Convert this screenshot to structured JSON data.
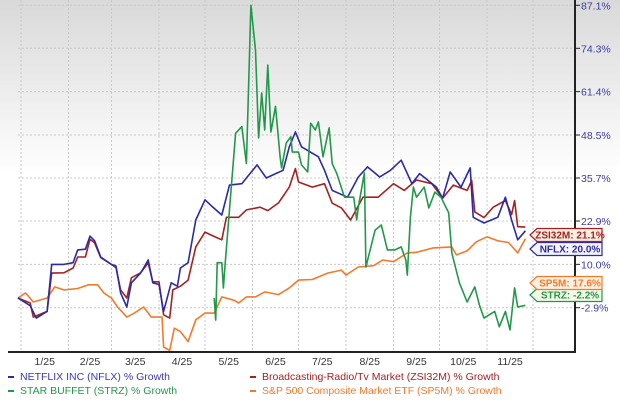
{
  "chart_data": {
    "type": "line",
    "title": "",
    "xlabel": "",
    "ylabel": "",
    "x_tick_labels": [
      "1/25",
      "2/25",
      "3/25",
      "4/25",
      "5/25",
      "6/25",
      "7/25",
      "8/25",
      "9/25",
      "10/25",
      "11/25"
    ],
    "y_tick_labels": [
      "87.1%",
      "74.3%",
      "61.4%",
      "48.5%",
      "35.7%",
      "22.9%",
      "10.0%",
      "-2.9%"
    ],
    "y_ticks": [
      87.1,
      74.3,
      61.4,
      48.5,
      35.7,
      22.9,
      10.0,
      -2.9
    ],
    "ylim": [
      -17,
      87.1
    ],
    "xlim": [
      "2024-12-30",
      "2025-12-31"
    ],
    "y_axis_side": "right",
    "grid": true,
    "legend_position": "bottom",
    "series": [
      {
        "name": "NETFLIX INC (NFLX) % Growth",
        "ticker": "NFLX",
        "color": "#2b2ba6",
        "end_label": "NFLX: 20.0%",
        "points": [
          [
            "2024-12-30",
            0
          ],
          [
            "2025-01-07",
            -2.3
          ],
          [
            "2025-01-11",
            -6
          ],
          [
            "2025-01-18",
            -4
          ],
          [
            "2025-01-21",
            10
          ],
          [
            "2025-01-29",
            10
          ],
          [
            "2025-02-04",
            10.5
          ],
          [
            "2025-02-07",
            14.3
          ],
          [
            "2025-02-12",
            14.5
          ],
          [
            "2025-02-15",
            18.4
          ],
          [
            "2025-02-18",
            17
          ],
          [
            "2025-02-22",
            12.2
          ],
          [
            "2025-03-01",
            10
          ],
          [
            "2025-03-04",
            9.5
          ],
          [
            "2025-03-07",
            1.5
          ],
          [
            "2025-03-11",
            -2.7
          ],
          [
            "2025-03-14",
            4.5
          ],
          [
            "2025-03-20",
            7.4
          ],
          [
            "2025-03-25",
            11.3
          ],
          [
            "2025-03-28",
            4.5
          ],
          [
            "2025-04-01",
            4
          ],
          [
            "2025-04-04",
            -4
          ],
          [
            "2025-04-09",
            4.5
          ],
          [
            "2025-04-13",
            3.5
          ],
          [
            "2025-04-15",
            8.9
          ],
          [
            "2025-04-20",
            10.5
          ],
          [
            "2025-04-25",
            23.2
          ],
          [
            "2025-05-01",
            29.2
          ],
          [
            "2025-05-05",
            27.5
          ],
          [
            "2025-05-12",
            24.7
          ],
          [
            "2025-05-17",
            33.6
          ],
          [
            "2025-05-25",
            34
          ],
          [
            "2025-05-28",
            35.7
          ],
          [
            "2025-06-04",
            39.6
          ],
          [
            "2025-06-10",
            35.7
          ],
          [
            "2025-06-17",
            37.2
          ],
          [
            "2025-06-21",
            38
          ],
          [
            "2025-06-25",
            45
          ],
          [
            "2025-06-29",
            49.4
          ],
          [
            "2025-07-03",
            45
          ],
          [
            "2025-07-14",
            42
          ],
          [
            "2025-07-18",
            38
          ],
          [
            "2025-07-23",
            32
          ],
          [
            "2025-08-02",
            30
          ],
          [
            "2025-08-09",
            36
          ],
          [
            "2025-08-15",
            39
          ],
          [
            "2025-08-23",
            36
          ],
          [
            "2025-08-30",
            38
          ],
          [
            "2025-09-06",
            41
          ],
          [
            "2025-09-13",
            34
          ],
          [
            "2025-09-18",
            37
          ],
          [
            "2025-09-29",
            33
          ],
          [
            "2025-10-03",
            29.7
          ],
          [
            "2025-10-08",
            37.5
          ],
          [
            "2025-10-15",
            33
          ],
          [
            "2025-10-21",
            38.7
          ],
          [
            "2025-10-23",
            24
          ],
          [
            "2025-10-30",
            22.3
          ],
          [
            "2025-11-08",
            24
          ],
          [
            "2025-11-13",
            30
          ],
          [
            "2025-11-17",
            23.2
          ],
          [
            "2025-11-21",
            17.3
          ],
          [
            "2025-11-26",
            20
          ]
        ]
      },
      {
        "name": "Broadcasting-Radio/Tv Market (ZSI32M) % Growth",
        "ticker": "ZSI32M",
        "color": "#a32222",
        "end_label": "ZSI32M: 21.1%",
        "points": [
          [
            "2024-12-30",
            0
          ],
          [
            "2025-01-07",
            -1.5
          ],
          [
            "2025-01-09",
            -5.7
          ],
          [
            "2025-01-18",
            -4
          ],
          [
            "2025-01-21",
            7.4
          ],
          [
            "2025-01-29",
            7.5
          ],
          [
            "2025-02-04",
            8.9
          ],
          [
            "2025-02-07",
            12.2
          ],
          [
            "2025-02-12",
            12.2
          ],
          [
            "2025-02-15",
            17.5
          ],
          [
            "2025-02-18",
            16.4
          ],
          [
            "2025-02-22",
            12
          ],
          [
            "2025-03-01",
            10
          ],
          [
            "2025-03-04",
            9
          ],
          [
            "2025-03-07",
            2.4
          ],
          [
            "2025-03-11",
            0
          ],
          [
            "2025-03-14",
            6
          ],
          [
            "2025-03-20",
            7.5
          ],
          [
            "2025-03-25",
            10.4
          ],
          [
            "2025-03-28",
            4.8
          ],
          [
            "2025-04-01",
            4.8
          ],
          [
            "2025-04-04",
            -5
          ],
          [
            "2025-04-08",
            -6
          ],
          [
            "2025-04-10",
            2.4
          ],
          [
            "2025-04-15",
            3.5
          ],
          [
            "2025-04-20",
            5.3
          ],
          [
            "2025-04-25",
            15.2
          ],
          [
            "2025-05-01",
            19.6
          ],
          [
            "2025-05-07",
            18.3
          ],
          [
            "2025-05-12",
            17.3
          ],
          [
            "2025-05-15",
            24
          ],
          [
            "2025-05-23",
            24
          ],
          [
            "2025-05-28",
            26.2
          ],
          [
            "2025-06-06",
            27
          ],
          [
            "2025-06-11",
            26
          ],
          [
            "2025-06-18",
            28.3
          ],
          [
            "2025-06-25",
            33
          ],
          [
            "2025-06-29",
            38.5
          ],
          [
            "2025-07-01",
            34.5
          ],
          [
            "2025-07-10",
            33
          ],
          [
            "2025-07-18",
            34
          ],
          [
            "2025-07-23",
            28.2
          ],
          [
            "2025-07-29",
            26.8
          ],
          [
            "2025-08-04",
            23.2
          ],
          [
            "2025-08-12",
            30
          ],
          [
            "2025-08-22",
            30
          ],
          [
            "2025-09-01",
            34
          ],
          [
            "2025-09-08",
            32
          ],
          [
            "2025-09-16",
            35.1
          ],
          [
            "2025-09-26",
            34
          ],
          [
            "2025-10-03",
            29.7
          ],
          [
            "2025-10-10",
            33.6
          ],
          [
            "2025-10-19",
            32
          ],
          [
            "2025-10-22",
            35
          ],
          [
            "2025-10-24",
            25.6
          ],
          [
            "2025-10-30",
            23.9
          ],
          [
            "2025-11-05",
            27
          ],
          [
            "2025-11-13",
            29
          ],
          [
            "2025-11-17",
            24.8
          ],
          [
            "2025-11-19",
            29
          ],
          [
            "2025-11-21",
            21.2
          ],
          [
            "2025-11-26",
            21.1
          ]
        ]
      },
      {
        "name": "STAR BUFFET (STRZ) % Growth",
        "ticker": "STRZ",
        "color": "#23984a",
        "end_label": "STRZ: -2.2%",
        "points": [
          [
            "2025-05-07",
            0
          ],
          [
            "2025-05-08",
            -6.6
          ],
          [
            "2025-05-09",
            10.5
          ],
          [
            "2025-05-12",
            10.5
          ],
          [
            "2025-05-13",
            3
          ],
          [
            "2025-05-14",
            9.2
          ],
          [
            "2025-05-21",
            49
          ],
          [
            "2025-05-25",
            51
          ],
          [
            "2025-05-28",
            40
          ],
          [
            "2025-05-31",
            87.1
          ],
          [
            "2025-06-03",
            73.8
          ],
          [
            "2025-06-05",
            47.6
          ],
          [
            "2025-06-07",
            61
          ],
          [
            "2025-06-09",
            50
          ],
          [
            "2025-06-11",
            69.3
          ],
          [
            "2025-06-13",
            49.4
          ],
          [
            "2025-06-16",
            57
          ],
          [
            "2025-06-19",
            42
          ],
          [
            "2025-06-20",
            38.7
          ],
          [
            "2025-06-23",
            46.1
          ],
          [
            "2025-06-26",
            48
          ],
          [
            "2025-06-27",
            43.4
          ],
          [
            "2025-07-01",
            43.4
          ],
          [
            "2025-07-03",
            39.6
          ],
          [
            "2025-07-07",
            37.5
          ],
          [
            "2025-07-09",
            52
          ],
          [
            "2025-07-12",
            50
          ],
          [
            "2025-07-14",
            52.4
          ],
          [
            "2025-07-17",
            42
          ],
          [
            "2025-07-21",
            50.6
          ],
          [
            "2025-07-23",
            40
          ],
          [
            "2025-07-26",
            37
          ],
          [
            "2025-07-31",
            30
          ],
          [
            "2025-08-06",
            30
          ],
          [
            "2025-08-08",
            23.2
          ],
          [
            "2025-08-09",
            27
          ],
          [
            "2025-08-13",
            37.2
          ],
          [
            "2025-08-14",
            9.2
          ],
          [
            "2025-08-20",
            20.2
          ],
          [
            "2025-08-24",
            21.7
          ],
          [
            "2025-08-28",
            14.3
          ],
          [
            "2025-09-02",
            14.3
          ],
          [
            "2025-09-06",
            15.2
          ],
          [
            "2025-09-09",
            11.3
          ],
          [
            "2025-09-10",
            6.8
          ],
          [
            "2025-09-12",
            24
          ],
          [
            "2025-09-14",
            33
          ],
          [
            "2025-09-16",
            30
          ],
          [
            "2025-09-21",
            33
          ],
          [
            "2025-09-24",
            26.8
          ],
          [
            "2025-09-28",
            31.5
          ],
          [
            "2025-10-02",
            30
          ],
          [
            "2025-10-07",
            25.3
          ],
          [
            "2025-10-09",
            13.4
          ],
          [
            "2025-10-14",
            4.5
          ],
          [
            "2025-10-19",
            -1.2
          ],
          [
            "2025-10-24",
            3.3
          ],
          [
            "2025-10-27",
            -2.1
          ],
          [
            "2025-10-30",
            -6
          ],
          [
            "2025-11-06",
            -4
          ],
          [
            "2025-11-09",
            -8.6
          ],
          [
            "2025-11-13",
            -4
          ],
          [
            "2025-11-16",
            -9.5
          ],
          [
            "2025-11-19",
            3
          ],
          [
            "2025-11-21",
            -2.7
          ],
          [
            "2025-11-26",
            -2.2
          ]
        ]
      },
      {
        "name": "S&P 500 Composite Market ETF (SP5M) % Growth",
        "ticker": "SP5M",
        "color": "#f37a2c",
        "end_label": "SP5M: 17.6%",
        "points": [
          [
            "2024-12-30",
            0
          ],
          [
            "2025-01-04",
            1.5
          ],
          [
            "2025-01-09",
            -1.2
          ],
          [
            "2025-01-18",
            0
          ],
          [
            "2025-01-23",
            3.3
          ],
          [
            "2025-01-29",
            2.4
          ],
          [
            "2025-02-07",
            2.8
          ],
          [
            "2025-02-14",
            3.9
          ],
          [
            "2025-02-20",
            3.9
          ],
          [
            "2025-02-24",
            1.5
          ],
          [
            "2025-03-01",
            0
          ],
          [
            "2025-03-05",
            -2.7
          ],
          [
            "2025-03-11",
            -5.7
          ],
          [
            "2025-03-16",
            -4.5
          ],
          [
            "2025-03-22",
            -2.7
          ],
          [
            "2025-03-27",
            -5.7
          ],
          [
            "2025-04-03",
            -5.7
          ],
          [
            "2025-04-04",
            -14.6
          ],
          [
            "2025-04-08",
            -15.6
          ],
          [
            "2025-04-11",
            -9
          ],
          [
            "2025-04-15",
            -10
          ],
          [
            "2025-04-20",
            -13
          ],
          [
            "2025-04-25",
            -6.5
          ],
          [
            "2025-05-01",
            -4.5
          ],
          [
            "2025-05-07",
            -4.5
          ],
          [
            "2025-05-12",
            0.3
          ],
          [
            "2025-05-20",
            -0.7
          ],
          [
            "2025-05-23",
            -1.5
          ],
          [
            "2025-05-28",
            0.3
          ],
          [
            "2025-06-03",
            0.3
          ],
          [
            "2025-06-09",
            1.8
          ],
          [
            "2025-06-18",
            1
          ],
          [
            "2025-06-25",
            3
          ],
          [
            "2025-07-01",
            5.3
          ],
          [
            "2025-07-10",
            5.5
          ],
          [
            "2025-07-20",
            7.4
          ],
          [
            "2025-07-29",
            8.3
          ],
          [
            "2025-08-01",
            6.8
          ],
          [
            "2025-08-09",
            9.2
          ],
          [
            "2025-08-19",
            9.6
          ],
          [
            "2025-08-25",
            11.3
          ],
          [
            "2025-09-01",
            10.8
          ],
          [
            "2025-09-10",
            13.4
          ],
          [
            "2025-09-16",
            13.6
          ],
          [
            "2025-09-27",
            14.9
          ],
          [
            "2025-10-09",
            15.2
          ],
          [
            "2025-10-12",
            12.8
          ],
          [
            "2025-10-19",
            14
          ],
          [
            "2025-10-25",
            16.7
          ],
          [
            "2025-11-01",
            18.2
          ],
          [
            "2025-11-08",
            17
          ],
          [
            "2025-11-15",
            16.5
          ],
          [
            "2025-11-21",
            13.4
          ],
          [
            "2025-11-26",
            17.6
          ]
        ]
      }
    ]
  },
  "legend": [
    {
      "label": "NETFLIX INC (NFLX) % Growth",
      "color": "#2b2ba6"
    },
    {
      "label": "Broadcasting-Radio/Tv Market (ZSI32M) % Growth",
      "color": "#a32222"
    },
    {
      "label": "STAR BUFFET (STRZ) % Growth",
      "color": "#23984a"
    },
    {
      "label": "S&P 500 Composite Market ETF (SP5M) % Growth",
      "color": "#f37a2c"
    }
  ]
}
